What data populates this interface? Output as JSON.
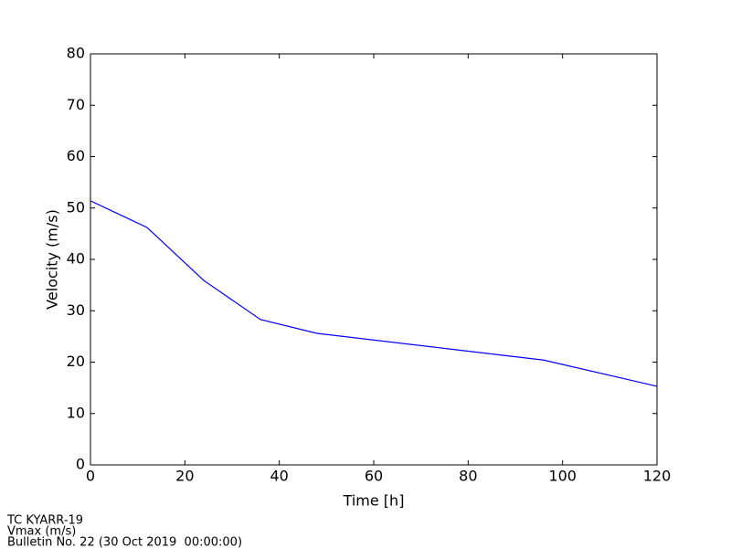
{
  "chart_data": {
    "type": "line",
    "x_label": "Time [h]",
    "y_label": "Velocity (m/s)",
    "x": [
      0,
      12,
      24,
      36,
      48,
      96,
      120
    ],
    "series": [
      {
        "color": "#0000ff",
        "values": [
          51.4,
          46.2,
          35.9,
          28.3,
          25.6,
          20.4,
          15.3
        ]
      }
    ],
    "xlim": [
      0,
      120
    ],
    "xticks": [
      0,
      20,
      40,
      60,
      80,
      100,
      120
    ],
    "ylim": [
      0,
      80
    ],
    "yticks": [
      0,
      10,
      20,
      30,
      40,
      50,
      60,
      70,
      80
    ],
    "grid": false,
    "annotations": [
      "TC KYARR-19",
      "Vmax (m/s)",
      "Bulletin No. 22 (30 Oct 2019  00:00:00)"
    ]
  }
}
